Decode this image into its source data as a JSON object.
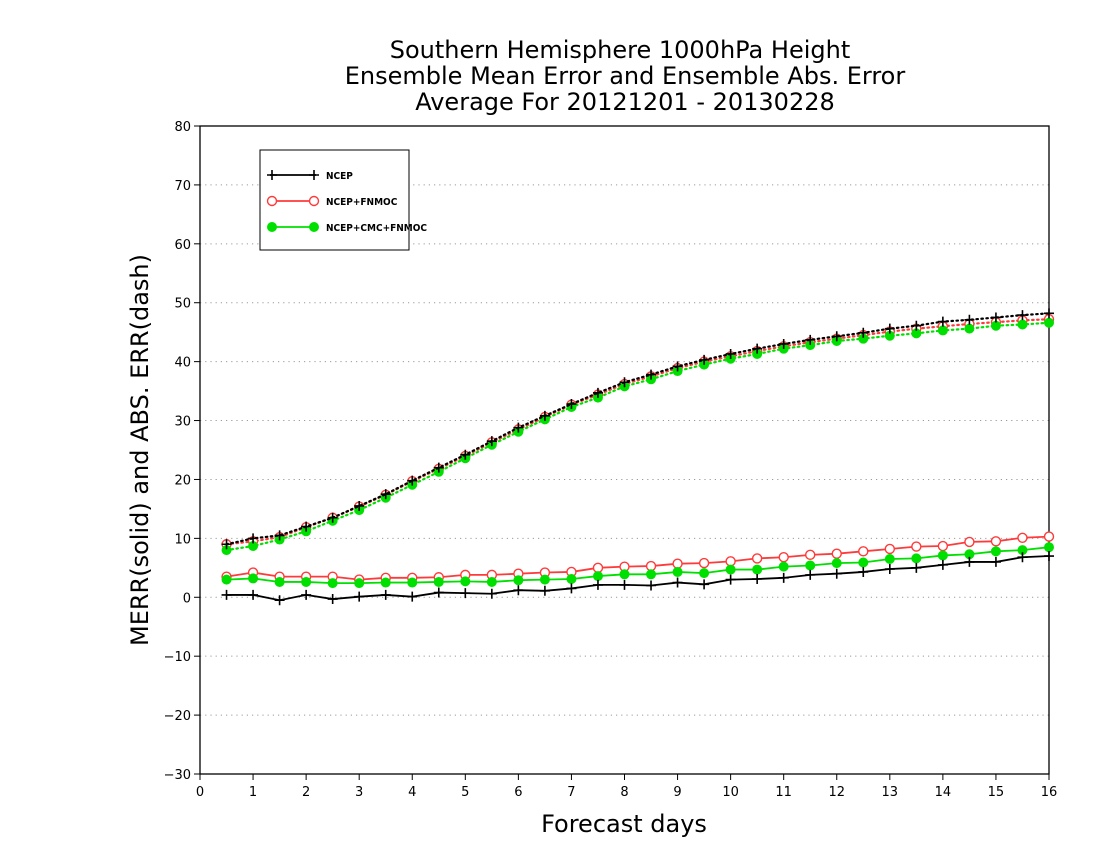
{
  "chart_data": {
    "type": "line",
    "title": [
      "Southern Hemisphere 1000hPa Height",
      "Ensemble Mean Error and Ensemble Abs. Error",
      "Average For 20121201 - 20130228"
    ],
    "xlabel": "Forecast days",
    "ylabel": "MERR(solid) and ABS. ERR(dash)",
    "xlim": [
      0,
      16
    ],
    "ylim": [
      -30,
      80
    ],
    "xticks": [
      0,
      1,
      2,
      3,
      4,
      5,
      6,
      7,
      8,
      9,
      10,
      11,
      12,
      13,
      14,
      15,
      16
    ],
    "yticks": [
      -30,
      -20,
      -10,
      0,
      10,
      20,
      30,
      40,
      50,
      60,
      70,
      80
    ],
    "grid": "horizontal dotted",
    "legend_position": "top-left",
    "x": [
      0.5,
      1,
      1.5,
      2,
      2.5,
      3,
      3.5,
      4,
      4.5,
      5,
      5.5,
      6,
      6.5,
      7,
      7.5,
      8,
      8.5,
      9,
      9.5,
      10,
      10.5,
      11,
      11.5,
      12,
      12.5,
      13,
      13.5,
      14,
      14.5,
      15,
      15.5,
      16
    ],
    "series": [
      {
        "name": "NCEP",
        "color": "#000000",
        "marker": "plus",
        "merr": [
          0.4,
          0.4,
          -0.5,
          0.4,
          -0.3,
          0.1,
          0.4,
          0.1,
          0.8,
          0.7,
          0.6,
          1.2,
          1.1,
          1.5,
          2.1,
          2.1,
          2.0,
          2.5,
          2.2,
          3.0,
          3.1,
          3.3,
          3.8,
          4.0,
          4.3,
          4.8,
          5.0,
          5.5,
          6.0,
          6.0,
          6.8,
          7.0
        ],
        "abs_err": [
          9.0,
          10.0,
          10.5,
          12.0,
          13.5,
          15.5,
          17.5,
          19.8,
          22.0,
          24.2,
          26.5,
          28.8,
          30.8,
          32.8,
          34.7,
          36.5,
          37.8,
          39.2,
          40.3,
          41.3,
          42.2,
          43.0,
          43.7,
          44.3,
          44.9,
          45.6,
          46.1,
          46.8,
          47.1,
          47.5,
          47.9,
          48.2
        ]
      },
      {
        "name": "NCEP+FNMOC",
        "color": "#ff3a3a",
        "marker": "open-circle",
        "merr": [
          3.5,
          4.2,
          3.5,
          3.5,
          3.5,
          3.0,
          3.3,
          3.3,
          3.4,
          3.8,
          3.8,
          4.0,
          4.2,
          4.3,
          5.0,
          5.2,
          5.3,
          5.7,
          5.8,
          6.1,
          6.6,
          6.8,
          7.2,
          7.4,
          7.8,
          8.2,
          8.6,
          8.7,
          9.4,
          9.5,
          10.1,
          10.3
        ],
        "abs_err": [
          9.0,
          9.5,
          10.2,
          11.9,
          13.5,
          15.4,
          17.4,
          19.7,
          21.8,
          24.0,
          26.3,
          28.5,
          30.6,
          32.7,
          34.4,
          36.2,
          37.5,
          38.9,
          40.0,
          40.9,
          41.8,
          42.6,
          43.3,
          43.9,
          44.5,
          45.1,
          45.6,
          46.0,
          46.4,
          46.7,
          47.0,
          47.2
        ]
      },
      {
        "name": "NCEP+CMC+FNMOC",
        "color": "#00e000",
        "marker": "filled-circle",
        "merr": [
          3.0,
          3.2,
          2.6,
          2.6,
          2.4,
          2.4,
          2.5,
          2.5,
          2.6,
          2.7,
          2.6,
          2.9,
          3.0,
          3.1,
          3.6,
          3.9,
          3.9,
          4.3,
          4.1,
          4.7,
          4.7,
          5.2,
          5.4,
          5.8,
          5.9,
          6.5,
          6.6,
          7.1,
          7.3,
          7.8,
          8.0,
          8.5
        ],
        "abs_err": [
          8.0,
          8.7,
          9.8,
          11.2,
          13.0,
          14.8,
          16.9,
          19.1,
          21.3,
          23.6,
          25.9,
          28.1,
          30.2,
          32.3,
          33.9,
          35.8,
          37.0,
          38.4,
          39.5,
          40.5,
          41.3,
          42.2,
          42.8,
          43.5,
          43.9,
          44.4,
          44.8,
          45.3,
          45.6,
          46.1,
          46.3,
          46.6
        ]
      }
    ]
  }
}
